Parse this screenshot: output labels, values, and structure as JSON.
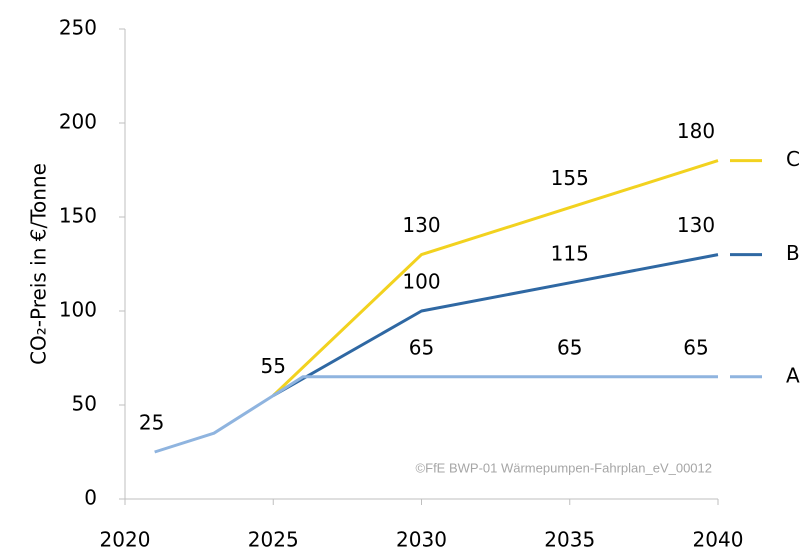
{
  "chart_data": {
    "type": "line",
    "ylabel": "CO₂-Preis in €/Tonne",
    "annotation": "©FfE BWP-01 Wärmepumpen-Fahrplan_eV_00012",
    "xlim": [
      2020,
      2040
    ],
    "xticks": [
      2020,
      2025,
      2030,
      2035,
      2040
    ],
    "ylim": [
      0,
      250
    ],
    "yticks": [
      0,
      50,
      100,
      150,
      200,
      250
    ],
    "grid": false,
    "legend": "right",
    "series": [
      {
        "name": "C",
        "color": "#f2d21f",
        "x": [
          2025,
          2030,
          2035,
          2040
        ],
        "values": [
          55,
          130,
          155,
          180
        ],
        "value_labels": [
          null,
          "130",
          "155",
          "180"
        ]
      },
      {
        "name": "B",
        "color": "#2f68a3",
        "x": [
          2025,
          2030,
          2035,
          2040
        ],
        "values": [
          55,
          100,
          115,
          130
        ],
        "value_labels": [
          null,
          "100",
          "115",
          "130"
        ]
      },
      {
        "name": "A",
        "color": "#8fb4df",
        "x": [
          2021,
          2023,
          2025,
          2026,
          2030,
          2035,
          2040
        ],
        "values": [
          25,
          35,
          55,
          65,
          65,
          65,
          65
        ],
        "value_labels": [
          "25",
          null,
          "55",
          null,
          "65",
          "65",
          "65"
        ]
      }
    ]
  }
}
